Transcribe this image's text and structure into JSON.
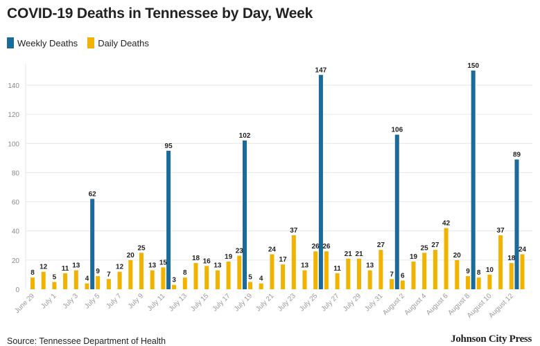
{
  "title": "COVID-19 Deaths in Tennessee by Day, Week",
  "legend": {
    "weekly_label": "Weekly Deaths",
    "daily_label": "Daily Deaths"
  },
  "source": "Source: Tennessee Department of Health",
  "brand": "Johnson City Press",
  "colors": {
    "weekly": "#1b6a97",
    "daily": "#f1b200",
    "grid": "#e6e6e6"
  },
  "chart_data": {
    "type": "bar",
    "title": "COVID-19 Deaths in Tennessee by Day, Week",
    "ylim": [
      0,
      150
    ],
    "yticks": [
      0,
      20,
      40,
      60,
      80,
      100,
      120,
      140
    ],
    "grid": true,
    "legend_position": "top-left",
    "x_tick_labels": [
      "June 29",
      "July 1",
      "July 3",
      "July 5",
      "July 7",
      "July 9",
      "July 11",
      "July 13",
      "July 15",
      "July 17",
      "July 19",
      "July 21",
      "July 23",
      "July 25",
      "July 27",
      "July 29",
      "July 31",
      "August 2",
      "August 4",
      "August 6",
      "August 8",
      "August 10",
      "August 12"
    ],
    "daily": {
      "name": "Daily Deaths",
      "dates": [
        "June 29",
        "June 30",
        "July 1",
        "July 2",
        "July 3",
        "July 4",
        "July 5",
        "July 6",
        "July 7",
        "July 8",
        "July 9",
        "July 10",
        "July 11",
        "July 12",
        "July 13",
        "July 14",
        "July 15",
        "July 16",
        "July 17",
        "July 18",
        "July 19",
        "July 20",
        "July 21",
        "July 22",
        "July 23",
        "July 24",
        "July 25",
        "July 26",
        "July 27",
        "July 28",
        "July 29",
        "July 30",
        "July 31",
        "August 1",
        "August 2",
        "August 3",
        "August 4",
        "August 5",
        "August 6",
        "August 7",
        "August 8",
        "August 9",
        "August 10",
        "August 11",
        "August 12",
        "August 13"
      ],
      "values": [
        8,
        12,
        5,
        11,
        13,
        4,
        9,
        7,
        12,
        20,
        25,
        13,
        15,
        3,
        8,
        18,
        16,
        13,
        19,
        23,
        5,
        4,
        24,
        17,
        37,
        13,
        26,
        26,
        11,
        21,
        21,
        13,
        27,
        7,
        6,
        19,
        25,
        27,
        42,
        20,
        9,
        8,
        10,
        37,
        18,
        24
      ]
    },
    "weekly": {
      "name": "Weekly Deaths",
      "dates": [
        "July 5",
        "July 12",
        "July 19",
        "July 26",
        "August 2",
        "August 9",
        "August 13"
      ],
      "values": [
        62,
        95,
        102,
        147,
        106,
        150,
        89
      ]
    }
  }
}
